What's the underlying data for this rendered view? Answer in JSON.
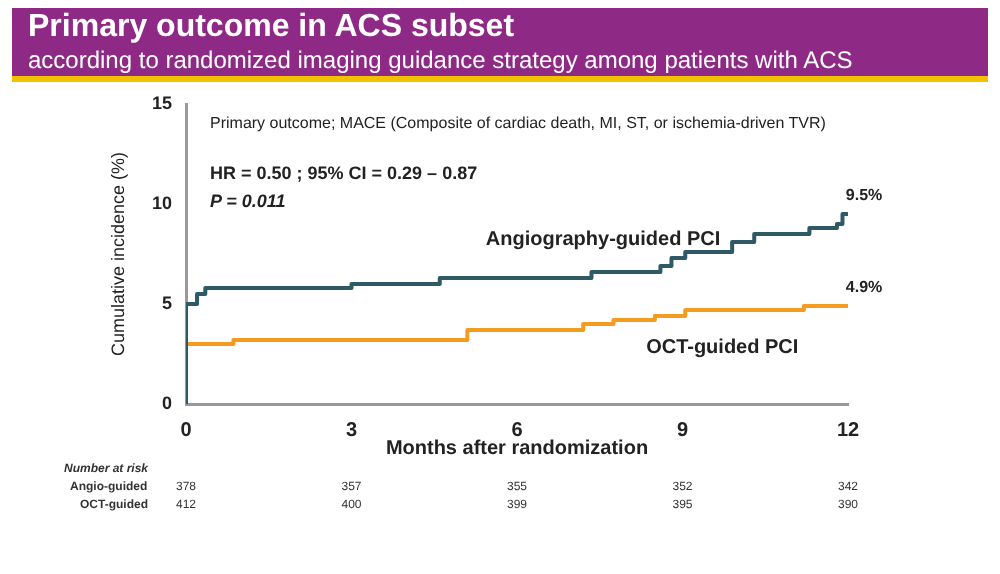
{
  "chart_data": {
    "type": "step",
    "title": "Primary outcome in ACS subset",
    "subtitle": "according to  randomized imaging guidance strategy among patients with ACS",
    "xlabel": "Months after randomization",
    "ylabel": "Cumulative incidence (%)",
    "xlim": [
      0,
      12
    ],
    "xticks": [
      0,
      3,
      6,
      9,
      12
    ],
    "ylim": [
      0,
      15
    ],
    "yticks": [
      0,
      5,
      10,
      15
    ],
    "grid": false,
    "legend": false,
    "marker": "none",
    "line_style": "solid",
    "series": [
      {
        "name": "Angiography-guided PCI",
        "color": "#2e5a66",
        "x": [
          0,
          0,
          0.2,
          0.35,
          3.0,
          4.6,
          7.35,
          8.6,
          8.8,
          9.05,
          9.9,
          10.3,
          11.3,
          11.8,
          11.9,
          12
        ],
        "values": [
          0,
          4.7,
          5.0,
          5.5,
          5.8,
          6.0,
          6.3,
          6.6,
          6.9,
          7.3,
          7.6,
          8.1,
          8.5,
          8.8,
          9.0,
          9.5
        ]
      },
      {
        "name": "OCT-guided PCI",
        "color": "#f39c1f",
        "x": [
          0,
          0,
          0.86,
          5.1,
          7.2,
          7.75,
          8.5,
          9.05,
          11.2,
          12
        ],
        "values": [
          0,
          2.8,
          3.0,
          3.2,
          3.7,
          4.0,
          4.2,
          4.4,
          4.7,
          4.9
        ]
      }
    ],
    "annotations": [
      "Primary outcome; MACE (Composite of cardiac death, MI, ST, or ischemia-driven TVR)",
      "HR = 0.50 ; 95% CI = 0.29 – 0.87",
      "P = 0.011",
      {
        "text": "9.5%",
        "x": 12,
        "y": 9.5
      },
      {
        "text": "4.9%",
        "x": 12,
        "y": 4.9
      },
      "Number at risk",
      "Angio-guided",
      "378",
      "357",
      "355",
      "352",
      "342",
      "OCT-guided",
      "412",
      "400",
      "399",
      "395",
      "390"
    ]
  }
}
